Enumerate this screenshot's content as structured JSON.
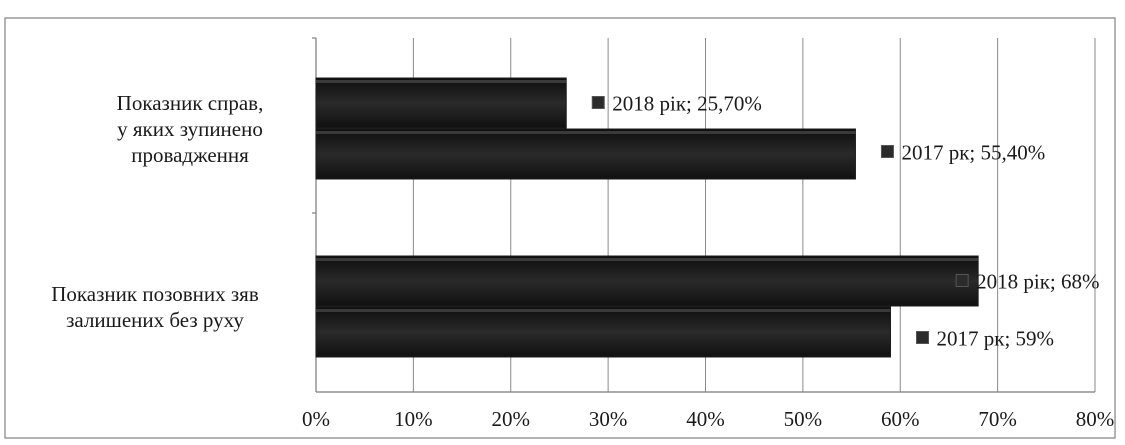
{
  "chart_data": {
    "type": "bar",
    "orientation": "horizontal",
    "categories": [
      [
        "Показник справ,",
        "у яких зупинено",
        "провадження"
      ],
      [
        "Показник позовних зяв",
        "залишених без руху"
      ]
    ],
    "bars": [
      {
        "category": 0,
        "series": "2018 рік",
        "value": 25.7,
        "label": "2018 рік; 25,70%"
      },
      {
        "category": 0,
        "series": "2017 рк",
        "value": 55.4,
        "label": "2017 рк; 55,40%"
      },
      {
        "category": 1,
        "series": "2018 рік",
        "value": 68,
        "label": "2018 рік; 68%"
      },
      {
        "category": 1,
        "series": "2017 рк",
        "value": 59,
        "label": "2017 рк; 59%"
      }
    ],
    "x_ticks": [
      "0%",
      "10%",
      "20%",
      "30%",
      "40%",
      "50%",
      "60%",
      "70%",
      "80%"
    ],
    "xlim": [
      0,
      80
    ],
    "grid": true,
    "legend": "none",
    "bar_color": "#1c1c1c",
    "title": "",
    "xlabel": "",
    "ylabel": ""
  }
}
